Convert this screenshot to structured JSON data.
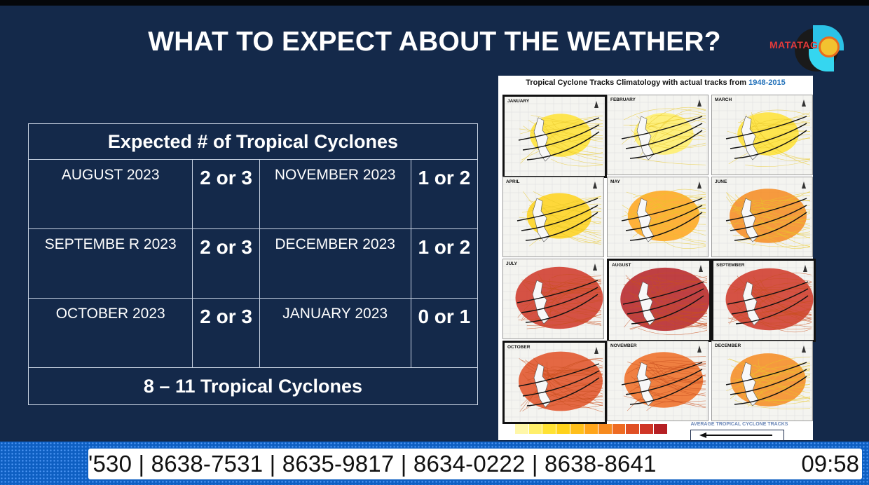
{
  "slide": {
    "title": "WHAT TO EXPECT ABOUT THE WEATHER?",
    "logo_text": "MATATAG"
  },
  "table": {
    "header": "Expected # of Tropical Cyclones",
    "rows": [
      {
        "m1": "AUGUST 2023",
        "c1": "2 or 3",
        "m2": "NOVEMBER 2023",
        "c2": "1 or 2"
      },
      {
        "m1": "SEPTEMBE R 2023",
        "c1": "2 or 3",
        "m2": "DECEMBER 2023",
        "c2": "1 or 2"
      },
      {
        "m1": "OCTOBER 2023",
        "c1": "2 or 3",
        "m2": "JANUARY 2023",
        "c2": "0 or 1"
      }
    ],
    "footer": "8 – 11 Tropical Cyclones"
  },
  "chart": {
    "title_main": "Tropical Cyclone Tracks Climatology with actual tracks from ",
    "title_years": "1948-2015",
    "months": [
      "JANUARY",
      "FEBRUARY",
      "MARCH",
      "APRIL",
      "MAY",
      "JUNE",
      "JULY",
      "AUGUST",
      "SEPTEMBER",
      "OCTOBER",
      "NOVEMBER",
      "DECEMBER"
    ],
    "highlighted": [
      "JANUARY",
      "AUGUST",
      "SEPTEMBER",
      "OCTOBER"
    ],
    "intensity": [
      0.15,
      0.1,
      0.15,
      0.25,
      0.45,
      0.6,
      0.9,
      0.95,
      0.9,
      0.8,
      0.65,
      0.55
    ],
    "legend_colors": [
      "#ffffff",
      "#fff7a8",
      "#ffef6a",
      "#ffe233",
      "#ffd21a",
      "#ffbf1a",
      "#ffa51a",
      "#f68a1f",
      "#ee6b22",
      "#e04f24",
      "#cf3526",
      "#b52024"
    ],
    "legend_caption": "AVERAGE TROPICAL CYCLONE TRACKS"
  },
  "ticker": {
    "text": "'530 | 8638-7531 | 8635-9817 | 8634-0222 | 8638-8641",
    "time": "09:58"
  }
}
